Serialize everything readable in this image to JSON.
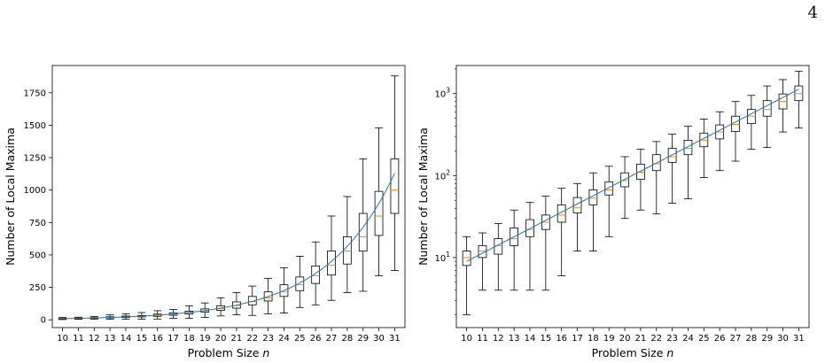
{
  "page": {
    "number": "4"
  },
  "chart_data": [
    {
      "type": "box",
      "xlabel_text": "Problem Size ",
      "xlabel_var": "n",
      "ylabel": "Number of Local Maxima",
      "yscale": "linear",
      "ylim": [
        -60,
        1960
      ],
      "yticks": [
        0,
        250,
        500,
        750,
        1000,
        1250,
        1500,
        1750
      ],
      "ytick_labels": [
        "0",
        "250",
        "500",
        "750",
        "1000",
        "1250",
        "1500",
        "1750"
      ],
      "categories": [
        "10",
        "11",
        "12",
        "13",
        "14",
        "15",
        "16",
        "17",
        "18",
        "19",
        "20",
        "21",
        "22",
        "23",
        "24",
        "25",
        "26",
        "27",
        "28",
        "29",
        "30",
        "31"
      ],
      "fit_color": "#1f77b4",
      "median_color": "#ff7f0e"
    },
    {
      "type": "box",
      "xlabel_text": "Problem Size ",
      "xlabel_var": "n",
      "ylabel": "Number of Local Maxima",
      "yscale": "log",
      "ylim": [
        1.4,
        2200
      ],
      "yticks": [
        10,
        100,
        1000
      ],
      "ytick_labels": [
        {
          "base": "10",
          "exp": "1"
        },
        {
          "base": "10",
          "exp": "2"
        },
        {
          "base": "10",
          "exp": "3"
        }
      ],
      "categories": [
        "10",
        "11",
        "12",
        "13",
        "14",
        "15",
        "16",
        "17",
        "18",
        "19",
        "20",
        "21",
        "22",
        "23",
        "24",
        "25",
        "26",
        "27",
        "28",
        "29",
        "30",
        "31"
      ],
      "fit_color": "#1f77b4",
      "median_color": "#ff7f0e"
    }
  ],
  "box_stats": [
    {
      "n": 10,
      "whislo": 2,
      "q1": 8,
      "med": 10,
      "q3": 12,
      "whishi": 18
    },
    {
      "n": 11,
      "whislo": 4,
      "q1": 10,
      "med": 12,
      "q3": 14,
      "whishi": 20
    },
    {
      "n": 12,
      "whislo": 4,
      "q1": 11,
      "med": 14,
      "q3": 17,
      "whishi": 26
    },
    {
      "n": 13,
      "whislo": 4,
      "q1": 14,
      "med": 17,
      "q3": 23,
      "whishi": 38
    },
    {
      "n": 14,
      "whislo": 4,
      "q1": 18,
      "med": 22,
      "q3": 29,
      "whishi": 47
    },
    {
      "n": 15,
      "whislo": 4,
      "q1": 22,
      "med": 27,
      "q3": 33,
      "whishi": 56
    },
    {
      "n": 16,
      "whislo": 6,
      "q1": 27,
      "med": 33,
      "q3": 44,
      "whishi": 70
    },
    {
      "n": 17,
      "whislo": 12,
      "q1": 35,
      "med": 41,
      "q3": 54,
      "whishi": 80
    },
    {
      "n": 18,
      "whislo": 12,
      "q1": 44,
      "med": 53,
      "q3": 67,
      "whishi": 108
    },
    {
      "n": 19,
      "whislo": 18,
      "q1": 58,
      "med": 67,
      "q3": 84,
      "whishi": 130
    },
    {
      "n": 20,
      "whislo": 30,
      "q1": 73,
      "med": 87,
      "q3": 108,
      "whishi": 170
    },
    {
      "n": 21,
      "whislo": 38,
      "q1": 90,
      "med": 110,
      "q3": 138,
      "whishi": 210
    },
    {
      "n": 22,
      "whislo": 34,
      "q1": 115,
      "med": 140,
      "q3": 180,
      "whishi": 260
    },
    {
      "n": 23,
      "whislo": 46,
      "q1": 145,
      "med": 170,
      "q3": 215,
      "whishi": 320
    },
    {
      "n": 24,
      "whislo": 52,
      "q1": 180,
      "med": 215,
      "q3": 270,
      "whishi": 400
    },
    {
      "n": 25,
      "whislo": 95,
      "q1": 225,
      "med": 270,
      "q3": 330,
      "whishi": 490
    },
    {
      "n": 26,
      "whislo": 115,
      "q1": 280,
      "med": 340,
      "q3": 415,
      "whishi": 600
    },
    {
      "n": 27,
      "whislo": 150,
      "q1": 345,
      "med": 420,
      "q3": 530,
      "whishi": 800
    },
    {
      "n": 28,
      "whislo": 210,
      "q1": 430,
      "med": 530,
      "q3": 640,
      "whishi": 950
    },
    {
      "n": 29,
      "whislo": 220,
      "q1": 530,
      "med": 640,
      "q3": 820,
      "whishi": 1240
    },
    {
      "n": 30,
      "whislo": 340,
      "q1": 650,
      "med": 800,
      "q3": 990,
      "whishi": 1480
    },
    {
      "n": 31,
      "whislo": 380,
      "q1": 820,
      "med": 1000,
      "q3": 1240,
      "whishi": 1880
    }
  ],
  "fit_curve": {
    "x": [
      10,
      31
    ],
    "y": [
      9,
      1130
    ]
  }
}
